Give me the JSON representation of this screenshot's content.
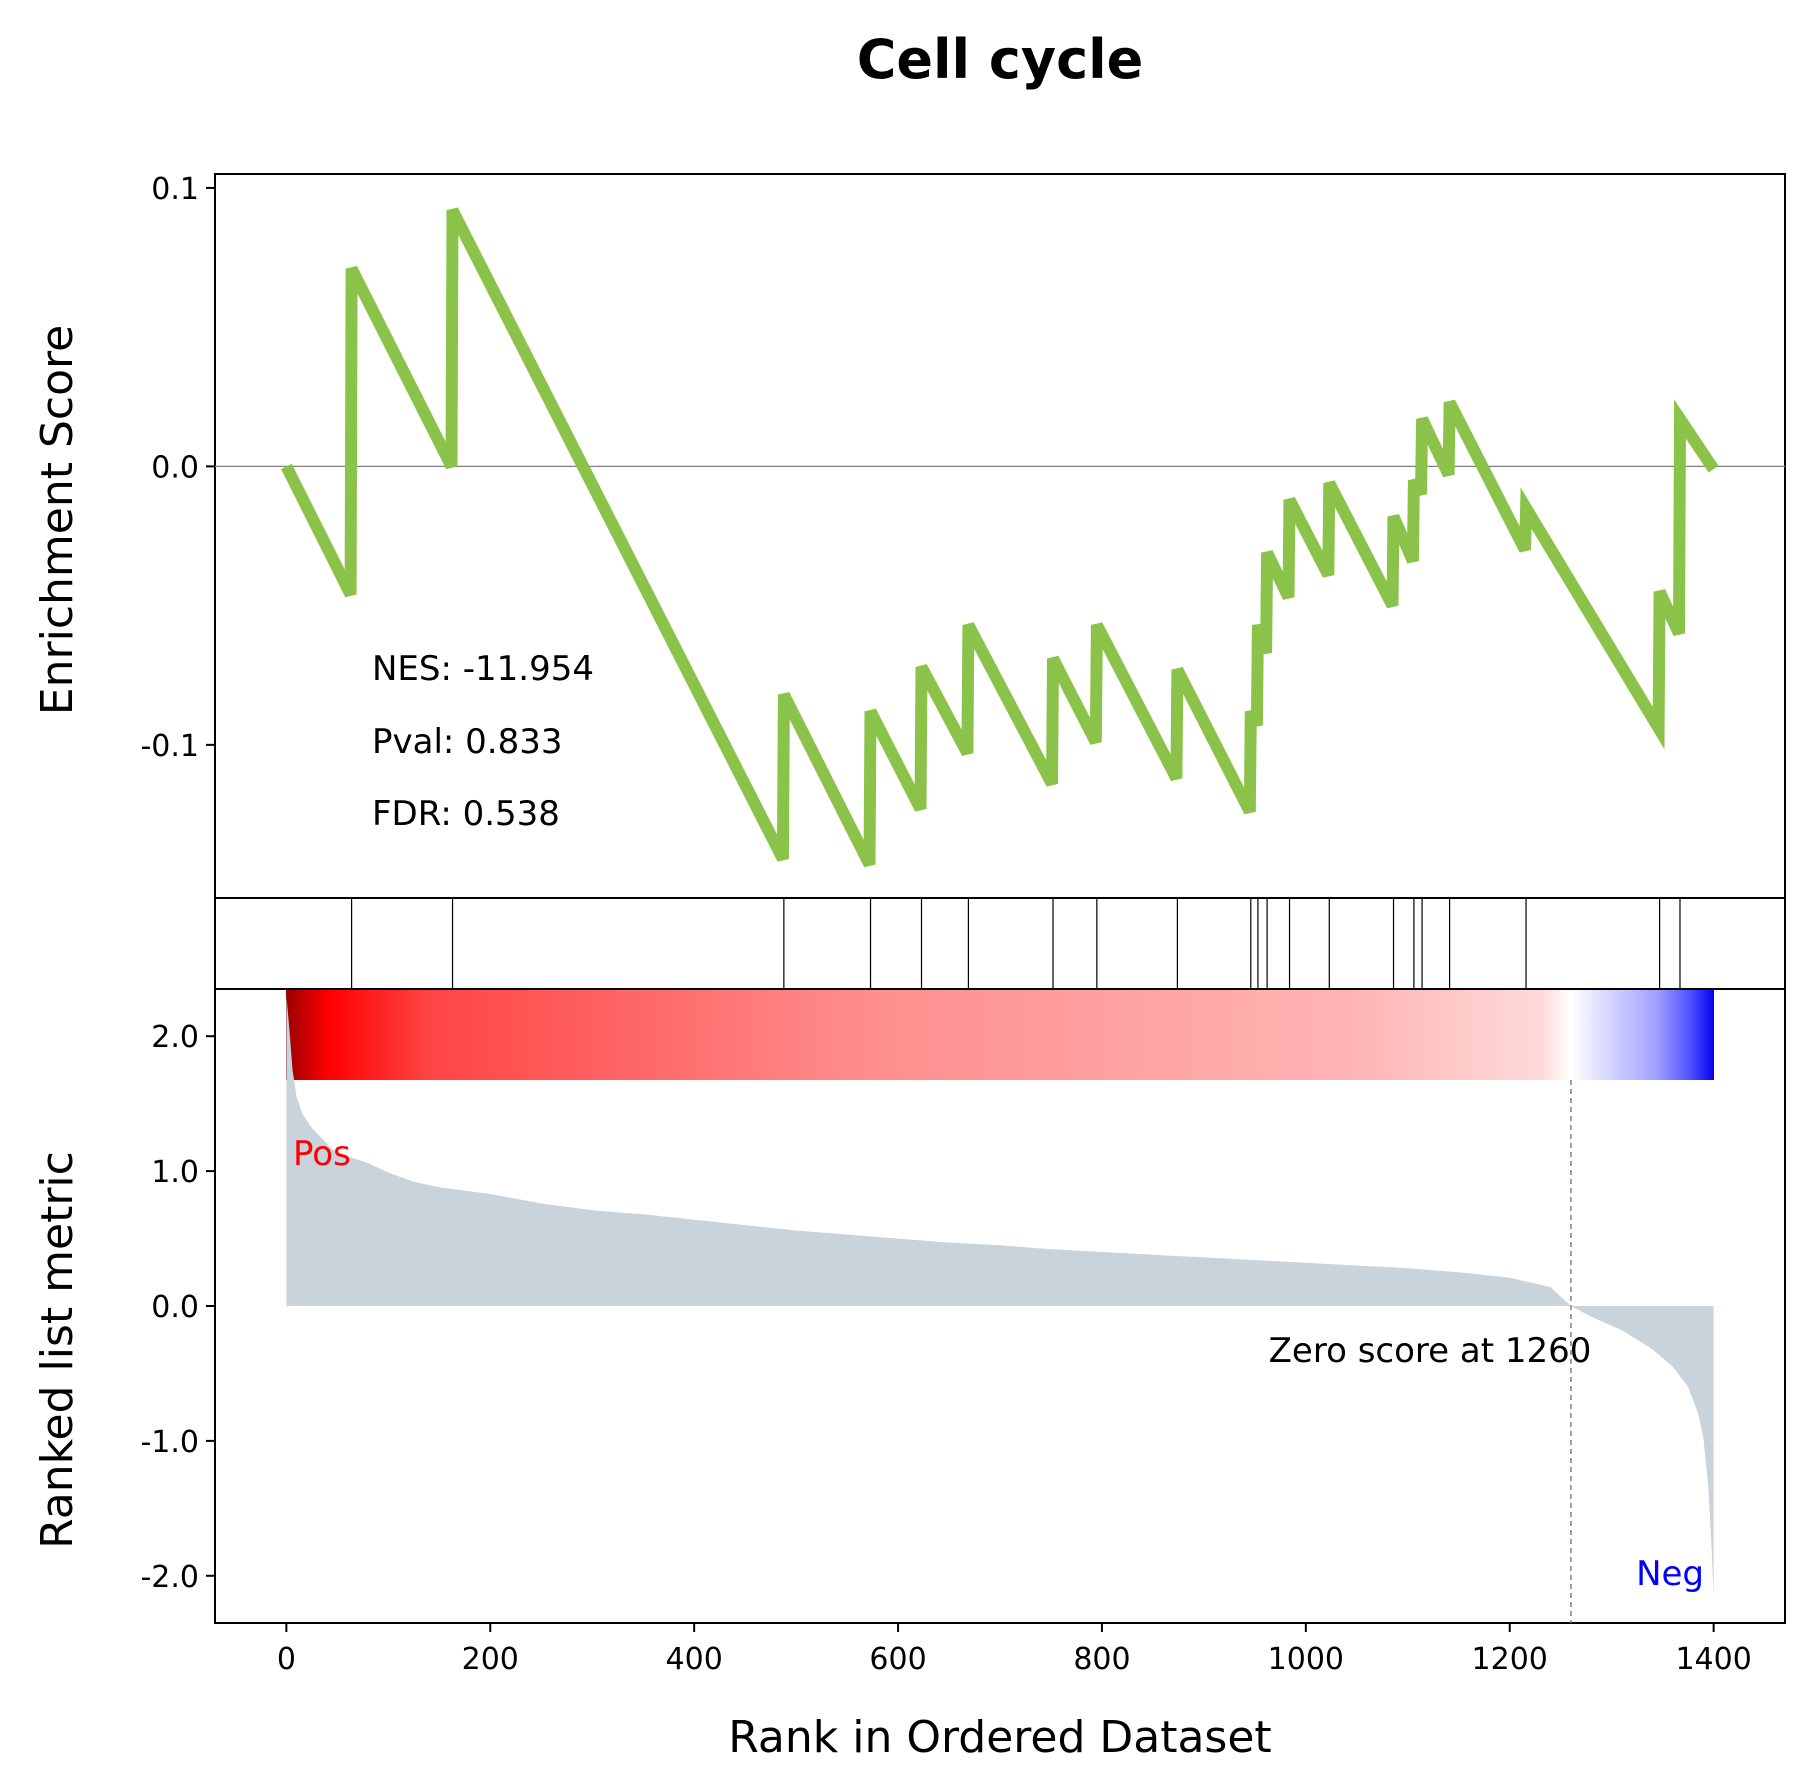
{
  "chart_data": {
    "type": "line",
    "title": "Cell cycle",
    "xlabel": "Rank in Ordered Dataset",
    "xlim": [
      -70,
      1470
    ],
    "x_ticks": [
      0,
      200,
      400,
      600,
      800,
      1000,
      1200,
      1400
    ],
    "x_tick_labels": [
      "0",
      "200",
      "400",
      "600",
      "800",
      "1000",
      "1200",
      "1400"
    ],
    "colors": {
      "es_line": "#8bc34a",
      "zero_line": "#808080",
      "hit_line": "#000000",
      "fill": "#c8d3dc",
      "pos": "#ff0000",
      "neg": "#0000ff",
      "zero_marker": "#808080"
    },
    "enrichment": {
      "ylabel": "Enrichment Score",
      "ylim": [
        -0.155,
        0.105
      ],
      "y_ticks": [
        0.1,
        0.0,
        -0.1
      ],
      "y_tick_labels": [
        "0.1",
        "0.0",
        "-0.1"
      ],
      "points": [
        [
          0,
          0.0
        ],
        [
          63,
          -0.046
        ],
        [
          64,
          0.071
        ],
        [
          162,
          0.0
        ],
        [
          163,
          0.092
        ],
        [
          487,
          -0.141
        ],
        [
          488,
          -0.082
        ],
        [
          572,
          -0.143
        ],
        [
          573,
          -0.088
        ],
        [
          622,
          -0.123
        ],
        [
          623,
          -0.072
        ],
        [
          668,
          -0.103
        ],
        [
          669,
          -0.057
        ],
        [
          751,
          -0.114
        ],
        [
          752,
          -0.069
        ],
        [
          794,
          -0.099
        ],
        [
          795,
          -0.057
        ],
        [
          873,
          -0.112
        ],
        [
          874,
          -0.073
        ],
        [
          945,
          -0.124
        ],
        [
          946,
          -0.088
        ],
        [
          952,
          -0.093
        ],
        [
          953,
          -0.057
        ],
        [
          961,
          -0.067
        ],
        [
          962,
          -0.031
        ],
        [
          983,
          -0.047
        ],
        [
          984,
          -0.012
        ],
        [
          1022,
          -0.039
        ],
        [
          1023,
          -0.006
        ],
        [
          1085,
          -0.05
        ],
        [
          1086,
          -0.018
        ],
        [
          1105,
          -0.034
        ],
        [
          1106,
          -0.005
        ],
        [
          1113,
          -0.01
        ],
        [
          1114,
          0.017
        ],
        [
          1140,
          -0.003
        ],
        [
          1141,
          0.023
        ],
        [
          1215,
          -0.03
        ],
        [
          1216,
          -0.015
        ],
        [
          1346,
          -0.094
        ],
        [
          1347,
          -0.045
        ],
        [
          1366,
          -0.06
        ],
        [
          1367,
          0.017
        ],
        [
          1400,
          -0.001
        ]
      ]
    },
    "stats": {
      "nes": "NES: -11.954",
      "pval": "Pval: 0.833",
      "fdr": "FDR: 0.538"
    },
    "hits": [
      64,
      163,
      488,
      573,
      623,
      669,
      752,
      795,
      874,
      946,
      953,
      962,
      984,
      1023,
      1086,
      1106,
      1114,
      1141,
      1216,
      1347,
      1367
    ],
    "ranked": {
      "ylabel": "Ranked list metric",
      "ylim": [
        -2.35,
        2.35
      ],
      "y_ticks": [
        2.0,
        1.0,
        0.0,
        -1.0,
        -2.0
      ],
      "y_tick_labels": [
        "2.0",
        "1.0",
        "0.0",
        "-1.0",
        "-2.0"
      ],
      "points": [
        [
          0,
          2.3
        ],
        [
          3,
          2.05
        ],
        [
          6,
          1.75
        ],
        [
          10,
          1.55
        ],
        [
          16,
          1.42
        ],
        [
          25,
          1.32
        ],
        [
          35,
          1.24
        ],
        [
          45,
          1.16
        ],
        [
          60,
          1.11
        ],
        [
          80,
          1.06
        ],
        [
          100,
          0.99
        ],
        [
          125,
          0.92
        ],
        [
          150,
          0.88
        ],
        [
          200,
          0.83
        ],
        [
          250,
          0.76
        ],
        [
          300,
          0.71
        ],
        [
          350,
          0.68
        ],
        [
          400,
          0.64
        ],
        [
          450,
          0.6
        ],
        [
          500,
          0.56
        ],
        [
          550,
          0.53
        ],
        [
          600,
          0.5
        ],
        [
          650,
          0.47
        ],
        [
          700,
          0.45
        ],
        [
          750,
          0.42
        ],
        [
          800,
          0.4
        ],
        [
          850,
          0.38
        ],
        [
          900,
          0.36
        ],
        [
          950,
          0.34
        ],
        [
          1000,
          0.32
        ],
        [
          1050,
          0.3
        ],
        [
          1100,
          0.28
        ],
        [
          1150,
          0.25
        ],
        [
          1200,
          0.21
        ],
        [
          1240,
          0.14
        ],
        [
          1260,
          0.0
        ],
        [
          1280,
          -0.08
        ],
        [
          1310,
          -0.18
        ],
        [
          1340,
          -0.32
        ],
        [
          1360,
          -0.45
        ],
        [
          1375,
          -0.6
        ],
        [
          1385,
          -0.8
        ],
        [
          1390,
          -0.98
        ],
        [
          1395,
          -1.35
        ],
        [
          1398,
          -1.8
        ],
        [
          1400,
          -2.15
        ]
      ],
      "zero_score_rank": 1260,
      "zero_label": "Zero score at 1260",
      "pos_label": "Pos",
      "neg_label": "Neg"
    }
  }
}
